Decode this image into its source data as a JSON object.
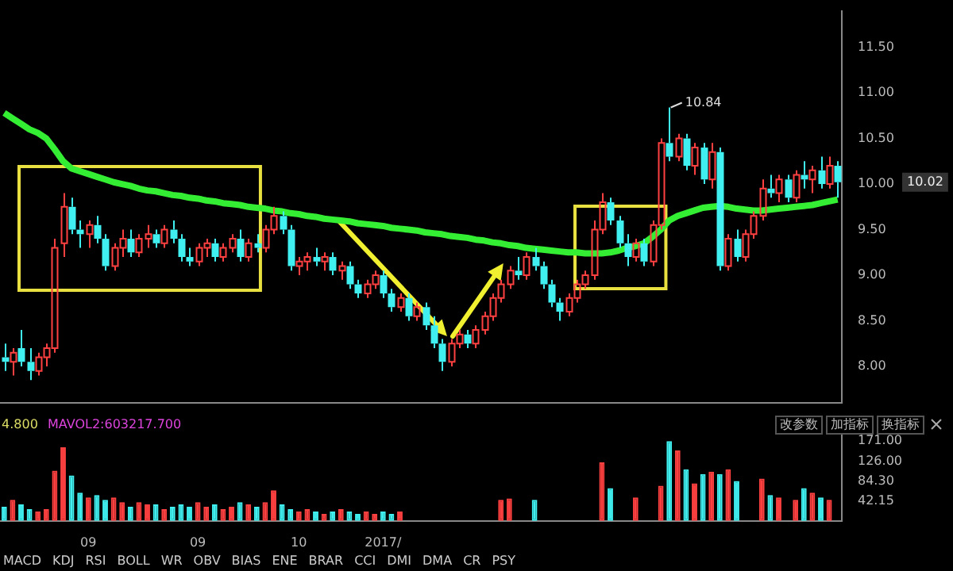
{
  "chart_data": [
    {
      "type": "candlestick",
      "categories": [
        null,
        null,
        null,
        null,
        null,
        null,
        null,
        null,
        null,
        null,
        null,
        null,
        null,
        null,
        null,
        null,
        null,
        null,
        null,
        null,
        null,
        null,
        null,
        null,
        null,
        null,
        null,
        null,
        null,
        null,
        null,
        null,
        null,
        null,
        null,
        null,
        null,
        null,
        null,
        null,
        null,
        null,
        null,
        null,
        null,
        null,
        null,
        null,
        null,
        null,
        null,
        null,
        null,
        null,
        null,
        null,
        null,
        null,
        null,
        null,
        null,
        null,
        null,
        null,
        null,
        null,
        null,
        null,
        null,
        null,
        null,
        null,
        null,
        null,
        null,
        null,
        null,
        null,
        null,
        null,
        null,
        null,
        null,
        null,
        null,
        null,
        null,
        null,
        null,
        null,
        null,
        null,
        null,
        null,
        null,
        null,
        null,
        null,
        null,
        null
      ],
      "tick_labels": "y",
      "ylim": [
        7.6,
        11.9
      ],
      "yticks": [
        {
          "value": 8,
          "label": "8.00"
        },
        {
          "value": 8.5,
          "label": "8.50"
        },
        {
          "value": 9,
          "label": "9.00"
        },
        {
          "value": 9.5,
          "label": "9.50"
        },
        {
          "value": 10,
          "label": "10.00"
        },
        {
          "value": 10.5,
          "label": "10.50"
        },
        {
          "value": 11,
          "label": "11.00"
        },
        {
          "value": 11.5,
          "label": "11.50"
        }
      ],
      "series": [
        {
          "type": "candlestick",
          "ohlc": [
            [
              8.1,
              8.25,
              7.95,
              8.05
            ],
            [
              8.05,
              8.2,
              7.9,
              8.15
            ],
            [
              8.2,
              8.4,
              8.0,
              8.05
            ],
            [
              8.05,
              8.2,
              7.85,
              7.95
            ],
            [
              7.95,
              8.15,
              7.9,
              8.1
            ],
            [
              8.1,
              8.25,
              8.0,
              8.2
            ],
            [
              8.2,
              9.4,
              8.15,
              9.3
            ],
            [
              9.35,
              9.9,
              9.2,
              9.75
            ],
            [
              9.75,
              9.85,
              9.45,
              9.5
            ],
            [
              9.5,
              9.6,
              9.3,
              9.45
            ],
            [
              9.45,
              9.6,
              9.3,
              9.55
            ],
            [
              9.55,
              9.65,
              9.35,
              9.4
            ],
            [
              9.4,
              9.45,
              9.05,
              9.1
            ],
            [
              9.1,
              9.35,
              9.05,
              9.3
            ],
            [
              9.3,
              9.5,
              9.2,
              9.4
            ],
            [
              9.4,
              9.5,
              9.2,
              9.25
            ],
            [
              9.25,
              9.45,
              9.2,
              9.4
            ],
            [
              9.4,
              9.55,
              9.3,
              9.45
            ],
            [
              9.45,
              9.5,
              9.3,
              9.35
            ],
            [
              9.35,
              9.55,
              9.3,
              9.5
            ],
            [
              9.5,
              9.6,
              9.35,
              9.4
            ],
            [
              9.4,
              9.45,
              9.15,
              9.2
            ],
            [
              9.2,
              9.3,
              9.1,
              9.15
            ],
            [
              9.15,
              9.35,
              9.1,
              9.3
            ],
            [
              9.3,
              9.4,
              9.2,
              9.35
            ],
            [
              9.35,
              9.4,
              9.15,
              9.2
            ],
            [
              9.2,
              9.35,
              9.15,
              9.3
            ],
            [
              9.3,
              9.45,
              9.25,
              9.4
            ],
            [
              9.4,
              9.5,
              9.15,
              9.2
            ],
            [
              9.2,
              9.4,
              9.15,
              9.35
            ],
            [
              9.35,
              9.45,
              9.25,
              9.3
            ],
            [
              9.3,
              9.55,
              9.25,
              9.5
            ],
            [
              9.5,
              9.75,
              9.45,
              9.65
            ],
            [
              9.65,
              9.7,
              9.45,
              9.5
            ],
            [
              9.5,
              9.55,
              9.05,
              9.1
            ],
            [
              9.1,
              9.2,
              9.0,
              9.15
            ],
            [
              9.15,
              9.25,
              9.05,
              9.2
            ],
            [
              9.2,
              9.3,
              9.1,
              9.15
            ],
            [
              9.15,
              9.25,
              9.05,
              9.2
            ],
            [
              9.2,
              9.25,
              9.0,
              9.05
            ],
            [
              9.05,
              9.15,
              8.95,
              9.1
            ],
            [
              9.1,
              9.15,
              8.85,
              8.9
            ],
            [
              8.9,
              8.95,
              8.75,
              8.8
            ],
            [
              8.8,
              8.95,
              8.75,
              8.9
            ],
            [
              8.9,
              9.05,
              8.85,
              9.0
            ],
            [
              9.0,
              9.05,
              8.75,
              8.8
            ],
            [
              8.8,
              8.85,
              8.6,
              8.65
            ],
            [
              8.65,
              8.8,
              8.6,
              8.75
            ],
            [
              8.75,
              8.8,
              8.5,
              8.55
            ],
            [
              8.55,
              8.7,
              8.5,
              8.65
            ],
            [
              8.65,
              8.7,
              8.4,
              8.45
            ],
            [
              8.45,
              8.55,
              8.2,
              8.25
            ],
            [
              8.25,
              8.3,
              7.95,
              8.05
            ],
            [
              8.05,
              8.3,
              8.0,
              8.25
            ],
            [
              8.25,
              8.4,
              8.2,
              8.35
            ],
            [
              8.35,
              8.4,
              8.2,
              8.25
            ],
            [
              8.25,
              8.45,
              8.2,
              8.4
            ],
            [
              8.4,
              8.6,
              8.35,
              8.55
            ],
            [
              8.55,
              8.8,
              8.5,
              8.75
            ],
            [
              8.75,
              8.95,
              8.7,
              8.9
            ],
            [
              8.9,
              9.1,
              8.85,
              9.05
            ],
            [
              9.05,
              9.2,
              8.95,
              9.0
            ],
            [
              9.0,
              9.25,
              8.95,
              9.2
            ],
            [
              9.2,
              9.3,
              9.05,
              9.1
            ],
            [
              9.1,
              9.15,
              8.85,
              8.9
            ],
            [
              8.9,
              8.95,
              8.65,
              8.7
            ],
            [
              8.7,
              8.75,
              8.5,
              8.6
            ],
            [
              8.6,
              8.8,
              8.55,
              8.75
            ],
            [
              8.75,
              8.95,
              8.7,
              8.9
            ],
            [
              8.9,
              9.05,
              8.85,
              9.0
            ],
            [
              9.0,
              9.6,
              8.95,
              9.5
            ],
            [
              9.5,
              9.9,
              9.45,
              9.8
            ],
            [
              9.8,
              9.85,
              9.55,
              9.6
            ],
            [
              9.6,
              9.65,
              9.3,
              9.35
            ],
            [
              9.35,
              9.45,
              9.1,
              9.2
            ],
            [
              9.2,
              9.4,
              9.15,
              9.35
            ],
            [
              9.35,
              9.4,
              9.1,
              9.15
            ],
            [
              9.15,
              9.6,
              9.1,
              9.55
            ],
            [
              9.55,
              10.5,
              9.5,
              10.45
            ],
            [
              10.45,
              10.84,
              10.25,
              10.3
            ],
            [
              10.3,
              10.55,
              10.25,
              10.5
            ],
            [
              10.5,
              10.55,
              10.15,
              10.2
            ],
            [
              10.2,
              10.45,
              10.1,
              10.4
            ],
            [
              10.4,
              10.45,
              10.0,
              10.05
            ],
            [
              10.05,
              10.45,
              9.95,
              10.35
            ],
            [
              10.35,
              10.4,
              9.05,
              9.1
            ],
            [
              9.1,
              9.45,
              9.05,
              9.4
            ],
            [
              9.4,
              9.5,
              9.15,
              9.2
            ],
            [
              9.2,
              9.5,
              9.15,
              9.45
            ],
            [
              9.45,
              9.7,
              9.4,
              9.65
            ],
            [
              9.65,
              10.05,
              9.6,
              9.95
            ],
            [
              9.95,
              10.1,
              9.85,
              9.9
            ],
            [
              9.9,
              10.1,
              9.8,
              10.05
            ],
            [
              10.05,
              10.1,
              9.8,
              9.85
            ],
            [
              9.85,
              10.15,
              9.8,
              10.1
            ],
            [
              10.1,
              10.25,
              9.95,
              10.05
            ],
            [
              10.05,
              10.2,
              9.9,
              10.15
            ],
            [
              10.15,
              10.3,
              9.95,
              10.0
            ],
            [
              10.0,
              10.3,
              9.95,
              10.2
            ],
            [
              10.2,
              10.25,
              9.85,
              10.02
            ]
          ],
          "colors": [
            "#40f0f0",
            "#ff4040",
            "#40f0f0",
            "#40f0f0",
            "#ff4040",
            "#ff4040",
            "#ff4040",
            "#ff4040",
            "#40f0f0",
            "#40f0f0",
            "#ff4040",
            "#40f0f0",
            "#40f0f0",
            "#ff4040",
            "#ff4040",
            "#40f0f0",
            "#ff4040",
            "#ff4040",
            "#40f0f0",
            "#ff4040",
            "#40f0f0",
            "#40f0f0",
            "#40f0f0",
            "#ff4040",
            "#ff4040",
            "#40f0f0",
            "#ff4040",
            "#ff4040",
            "#40f0f0",
            "#ff4040",
            "#40f0f0",
            "#ff4040",
            "#ff4040",
            "#40f0f0",
            "#40f0f0",
            "#ff4040",
            "#ff4040",
            "#40f0f0",
            "#ff4040",
            "#40f0f0",
            "#ff4040",
            "#40f0f0",
            "#40f0f0",
            "#ff4040",
            "#ff4040",
            "#40f0f0",
            "#40f0f0",
            "#ff4040",
            "#40f0f0",
            "#ff4040",
            "#40f0f0",
            "#40f0f0",
            "#40f0f0",
            "#ff4040",
            "#ff4040",
            "#40f0f0",
            "#ff4040",
            "#ff4040",
            "#ff4040",
            "#ff4040",
            "#ff4040",
            "#40f0f0",
            "#ff4040",
            "#40f0f0",
            "#40f0f0",
            "#40f0f0",
            "#40f0f0",
            "#ff4040",
            "#ff4040",
            "#ff4040",
            "#ff4040",
            "#ff4040",
            "#40f0f0",
            "#40f0f0",
            "#40f0f0",
            "#ff4040",
            "#40f0f0",
            "#ff4040",
            "#ff4040",
            "#40f0f0",
            "#ff4040",
            "#40f0f0",
            "#ff4040",
            "#40f0f0",
            "#ff4040",
            "#40f0f0",
            "#ff4040",
            "#40f0f0",
            "#ff4040",
            "#ff4040",
            "#ff4040",
            "#40f0f0",
            "#ff4040",
            "#40f0f0",
            "#ff4040",
            "#40f0f0",
            "#ff4040",
            "#40f0f0",
            "#ff4040",
            "#40f0f0"
          ]
        },
        {
          "type": "line",
          "color": "#33ee33",
          "values": [
            10.78,
            10.72,
            10.66,
            10.6,
            10.56,
            10.5,
            10.38,
            10.25,
            10.17,
            10.14,
            10.11,
            10.08,
            10.05,
            10.02,
            10.0,
            9.98,
            9.95,
            9.93,
            9.92,
            9.9,
            9.88,
            9.87,
            9.85,
            9.84,
            9.82,
            9.81,
            9.79,
            9.78,
            9.77,
            9.75,
            9.74,
            9.73,
            9.71,
            9.7,
            9.68,
            9.67,
            9.65,
            9.64,
            9.62,
            9.61,
            9.6,
            9.59,
            9.57,
            9.56,
            9.55,
            9.54,
            9.52,
            9.51,
            9.5,
            9.49,
            9.47,
            9.46,
            9.45,
            9.43,
            9.42,
            9.41,
            9.39,
            9.38,
            9.36,
            9.35,
            9.33,
            9.32,
            9.3,
            9.29,
            9.28,
            9.27,
            9.26,
            9.25,
            9.25,
            9.24,
            9.24,
            9.24,
            9.25,
            9.27,
            9.3,
            9.32,
            9.35,
            9.42,
            9.5,
            9.6,
            9.65,
            9.68,
            9.71,
            9.74,
            9.75,
            9.76,
            9.75,
            9.73,
            9.72,
            9.71,
            9.71,
            9.72,
            9.73,
            9.74,
            9.75,
            9.76,
            9.77,
            9.79,
            9.81,
            9.83
          ]
        }
      ],
      "marker": "none",
      "annotations": [
        "10.84",
        "10.02"
      ]
    },
    {
      "type": "bar",
      "categories": [
        null,
        null,
        null,
        null,
        null,
        null,
        null,
        null,
        null,
        null,
        "09",
        null,
        null,
        null,
        null,
        null,
        null,
        null,
        null,
        null,
        null,
        null,
        null,
        "09",
        null,
        null,
        null,
        null,
        null,
        null,
        null,
        null,
        null,
        null,
        null,
        "10",
        null,
        null,
        null,
        null,
        null,
        null,
        null,
        null,
        null,
        "2017/",
        null,
        null,
        null,
        null,
        null,
        null,
        null,
        null,
        null,
        null,
        null,
        null,
        null,
        null,
        null,
        null,
        null,
        null,
        null,
        null,
        null,
        null,
        null,
        null,
        null,
        null,
        null,
        null,
        null,
        null,
        null,
        null,
        null,
        null,
        null,
        null,
        null,
        null,
        null,
        null,
        null,
        null,
        null,
        null,
        null,
        null,
        null,
        null,
        null,
        null,
        null,
        null,
        null,
        null
      ],
      "values": [
        30,
        45,
        35,
        25,
        20,
        25,
        107,
        157,
        97,
        60,
        50,
        55,
        45,
        50,
        40,
        30,
        40,
        35,
        35,
        25,
        30,
        35,
        30,
        40,
        30,
        35,
        25,
        30,
        40,
        35,
        30,
        40,
        65,
        35,
        25,
        20,
        25,
        20,
        15,
        20,
        25,
        20,
        15,
        20,
        15,
        20,
        15,
        20,
        null,
        null,
        null,
        null,
        null,
        null,
        null,
        null,
        null,
        null,
        null,
        45,
        48,
        null,
        null,
        45,
        null,
        null,
        null,
        null,
        null,
        null,
        null,
        125,
        70,
        null,
        null,
        50,
        null,
        null,
        75,
        170,
        150,
        110,
        80,
        100,
        105,
        100,
        110,
        85,
        null,
        null,
        90,
        55,
        50,
        null,
        45,
        70,
        60,
        50,
        45,
        null
      ],
      "colors": [
        "#40f0f0",
        "#ff4040",
        "#40f0f0",
        "#40f0f0",
        "#ff4040",
        "#ff4040",
        "#ff4040",
        "#ff4040",
        "#40f0f0",
        "#40f0f0",
        "#ff4040",
        "#40f0f0",
        "#40f0f0",
        "#ff4040",
        "#ff4040",
        "#40f0f0",
        "#ff4040",
        "#ff4040",
        "#40f0f0",
        "#ff4040",
        "#40f0f0",
        "#40f0f0",
        "#40f0f0",
        "#ff4040",
        "#ff4040",
        "#40f0f0",
        "#ff4040",
        "#ff4040",
        "#40f0f0",
        "#ff4040",
        "#40f0f0",
        "#ff4040",
        "#ff4040",
        "#40f0f0",
        "#40f0f0",
        "#ff4040",
        "#ff4040",
        "#40f0f0",
        "#ff4040",
        "#40f0f0",
        "#ff4040",
        "#40f0f0",
        "#40f0f0",
        "#ff4040",
        "#ff4040",
        "#40f0f0",
        "#40f0f0",
        "#ff4040",
        "#40f0f0",
        "#ff4040",
        "#40f0f0",
        "#40f0f0",
        "#40f0f0",
        "#ff4040",
        "#ff4040",
        "#40f0f0",
        "#ff4040",
        "#ff4040",
        "#ff4040",
        "#ff4040",
        "#ff4040",
        "#40f0f0",
        "#ff4040",
        "#40f0f0",
        "#40f0f0",
        "#40f0f0",
        "#40f0f0",
        "#ff4040",
        "#ff4040",
        "#ff4040",
        "#ff4040",
        "#ff4040",
        "#40f0f0",
        "#40f0f0",
        "#40f0f0",
        "#ff4040",
        "#40f0f0",
        "#ff4040",
        "#ff4040",
        "#40f0f0",
        "#ff4040",
        "#40f0f0",
        "#ff4040",
        "#40f0f0",
        "#ff4040",
        "#40f0f0",
        "#ff4040",
        "#40f0f0",
        "#ff4040",
        "#ff4040",
        "#ff4040",
        "#40f0f0",
        "#ff4040",
        "#40f0f0",
        "#ff4040",
        "#40f0f0",
        "#ff4040",
        "#40f0f0",
        "#ff4040",
        "#40f0f0"
      ],
      "ylim": [
        0,
        184
      ],
      "yticks": [
        {
          "value": 42.15,
          "label": "42.15"
        },
        {
          "value": 84.3,
          "label": "84.30"
        },
        {
          "value": 126,
          "label": "126.00"
        },
        {
          "value": 171,
          "label": "171.00"
        }
      ],
      "annotations": [
        "4.800",
        "MAVOL2:603217.700",
        "改参数",
        "加指标",
        "换指标",
        "MACD",
        "KDJ",
        "RSI",
        "BOLL",
        "WR",
        "OBV",
        "BIAS",
        "ENE",
        "BRAR",
        "CCI",
        "DMI",
        "DMA",
        "CR",
        "PSY"
      ]
    }
  ]
}
